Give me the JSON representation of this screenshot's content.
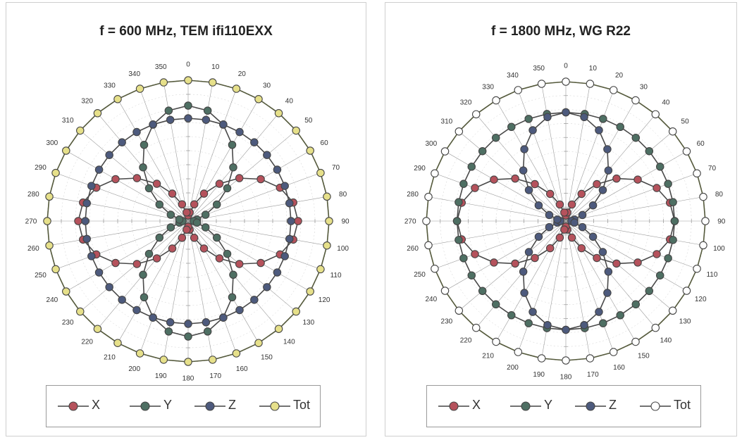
{
  "chart_data": [
    {
      "type": "polar",
      "title": "f = 600 MHz, TEM  ifi110EXX",
      "angles_deg": [
        0,
        10,
        20,
        30,
        40,
        50,
        60,
        70,
        80,
        90,
        100,
        110,
        120,
        130,
        140,
        150,
        160,
        170,
        180,
        190,
        200,
        210,
        220,
        230,
        240,
        250,
        260,
        270,
        280,
        290,
        300,
        310,
        320,
        330,
        340,
        350
      ],
      "angle_labels": [
        "0",
        "10",
        "20",
        "30",
        "40",
        "50",
        "60",
        "70",
        "80",
        "90",
        "100",
        "110",
        "120",
        "130",
        "140",
        "150",
        "160",
        "170",
        "180",
        "190",
        "200",
        "210",
        "220",
        "230",
        "240",
        "250",
        "260",
        "270",
        "280",
        "290",
        "300",
        "310",
        "320",
        "330",
        "340",
        "350"
      ],
      "r_max": 1.0,
      "series": [
        {
          "name": "X",
          "color": "#b5525c",
          "pattern": "cos2",
          "amplitude": 0.78,
          "floor": 0.04
        },
        {
          "name": "Y",
          "color": "#4e6f63",
          "pattern": "sin2",
          "amplitude": 0.82,
          "floor": 0.04
        },
        {
          "name": "Z",
          "color": "#4d5a7d",
          "pattern": "circle_mid",
          "amplitude": 0.73,
          "floor": 0.0
        },
        {
          "name": "Tot",
          "color": "#e6e08a",
          "pattern": "circle",
          "amplitude": 1.0,
          "floor": 0.0
        }
      ],
      "legend": {
        "labels": [
          "X",
          "Y",
          "Z",
          "Tot"
        ],
        "placement": "bottom"
      }
    },
    {
      "type": "polar",
      "title": "f = 1800 MHz, WG R22",
      "angles_deg": [
        0,
        10,
        20,
        30,
        40,
        50,
        60,
        70,
        80,
        90,
        100,
        110,
        120,
        130,
        140,
        150,
        160,
        170,
        180,
        190,
        200,
        210,
        220,
        230,
        240,
        250,
        260,
        270,
        280,
        290,
        300,
        310,
        320,
        330,
        340,
        350
      ],
      "angle_labels": [
        "0",
        "10",
        "20",
        "30",
        "40",
        "50",
        "60",
        "70",
        "80",
        "90",
        "100",
        "110",
        "120",
        "130",
        "140",
        "150",
        "160",
        "170",
        "180",
        "190",
        "200",
        "210",
        "220",
        "230",
        "240",
        "250",
        "260",
        "270",
        "280",
        "290",
        "300",
        "310",
        "320",
        "330",
        "340",
        "350"
      ],
      "r_max": 1.0,
      "series": [
        {
          "name": "X",
          "color": "#b5525c",
          "pattern": "cos2",
          "amplitude": 0.78,
          "floor": 0.04
        },
        {
          "name": "Y",
          "color": "#4e6f63",
          "pattern": "circle_mid",
          "amplitude": 0.78,
          "floor": 0.0
        },
        {
          "name": "Z",
          "color": "#4d5a7d",
          "pattern": "sin2",
          "amplitude": 0.78,
          "floor": 0.04
        },
        {
          "name": "Tot",
          "color": "#ffffff",
          "pattern": "circle",
          "amplitude": 1.0,
          "floor": 0.0
        }
      ],
      "legend": {
        "labels": [
          "X",
          "Y",
          "Z",
          "Tot"
        ],
        "placement": "bottom"
      }
    }
  ]
}
